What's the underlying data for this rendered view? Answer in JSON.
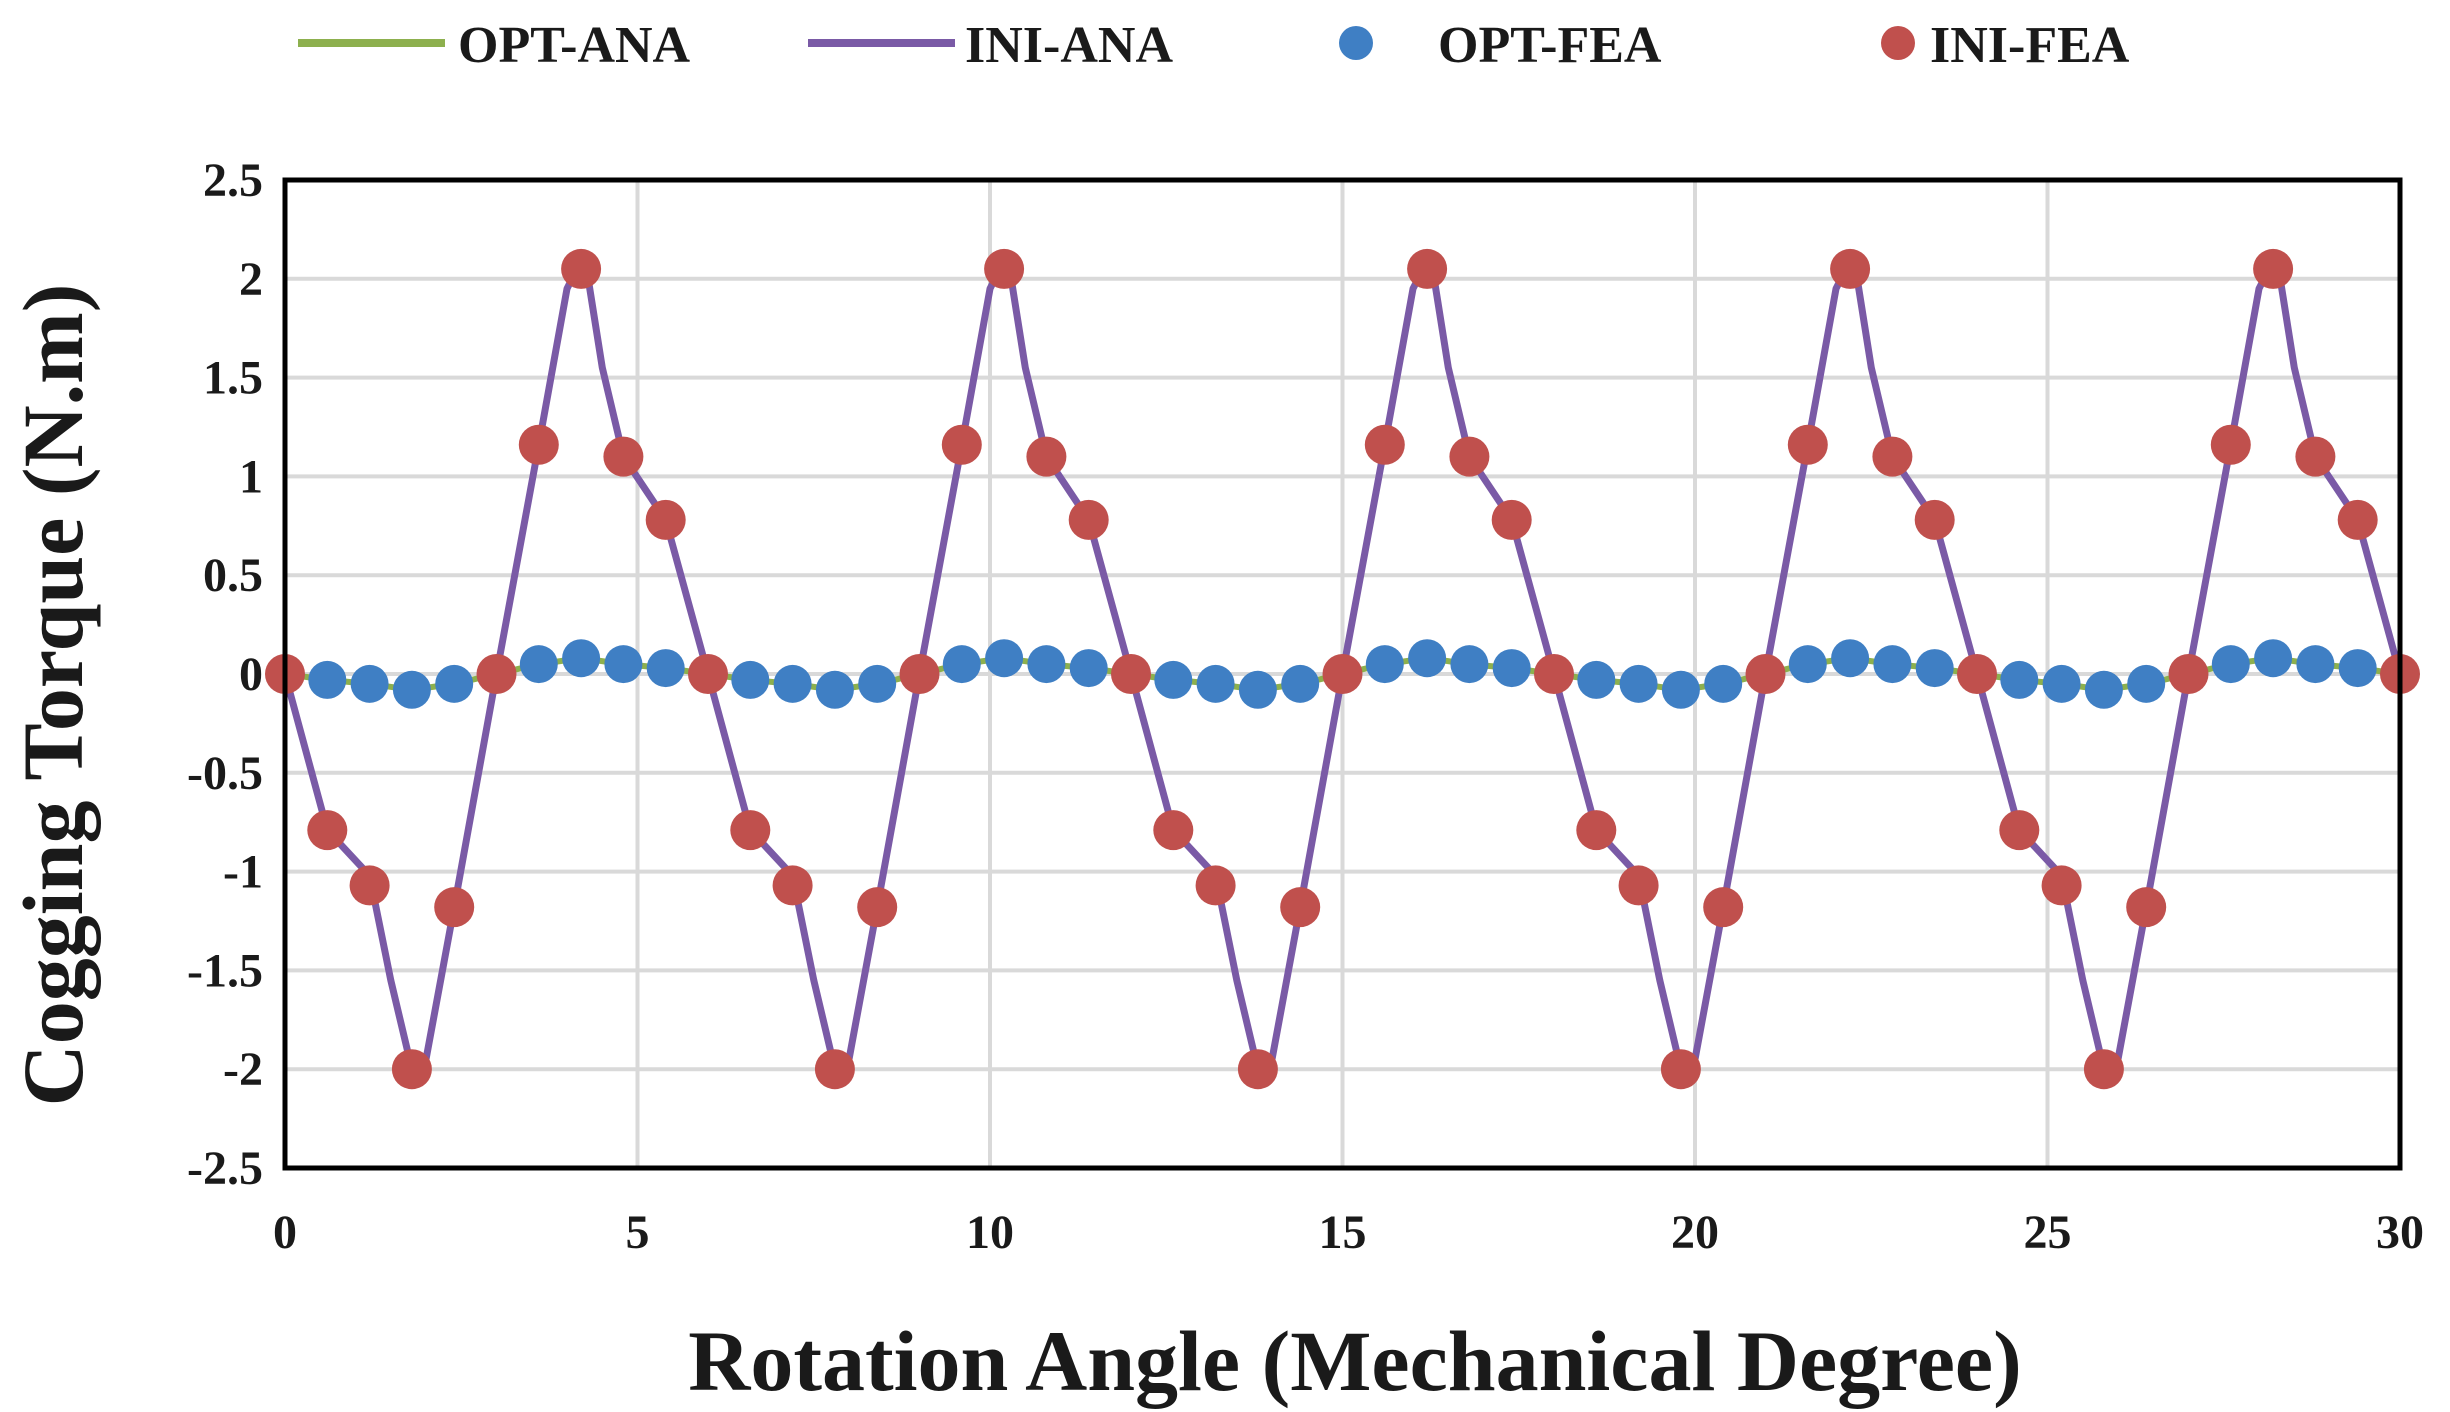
{
  "chart_data": {
    "type": "line",
    "title": "",
    "xlabel": "Rotation Angle (Mechanical Degree)",
    "ylabel": "Cogging Torque (N.m)",
    "xlim": [
      0,
      30
    ],
    "ylim": [
      -2.5,
      2.5
    ],
    "xticks": [
      0,
      5,
      10,
      15,
      20,
      25,
      30
    ],
    "xtick_labels": [
      "0",
      "5",
      "10",
      "15",
      "20",
      "25",
      "30"
    ],
    "yticks": [
      2.5,
      2,
      1.5,
      1,
      0.5,
      0,
      -0.5,
      -1,
      -1.5,
      -2,
      -2.5
    ],
    "ytick_labels": [
      "2.5",
      "2",
      "1.5",
      "1",
      "0.5",
      "0",
      "-0.5",
      "-1",
      "-1.5",
      "-2",
      "-2.5"
    ],
    "grid": true,
    "legend_position": "top",
    "colors": {
      "opt_ana": "#8db04e",
      "ini_ana": "#7a5aa6",
      "opt_fea": "#3f7fc4",
      "ini_fea": "#c0504d",
      "grid": "#d9d9d9",
      "axis": "#000000"
    },
    "period": 6,
    "opt_fea_period_values": [
      0,
      -0.03,
      -0.05,
      -0.08,
      -0.05,
      0,
      0.05,
      0.08,
      0.05,
      0.03
    ],
    "ini_fea_period_values": [
      0,
      -0.79,
      -1.07,
      -2.0,
      -1.18,
      0,
      1.16,
      2.05,
      1.1,
      0.78
    ],
    "ini_ana_period_curve": {
      "x": [
        0,
        0.6,
        1.2,
        1.5,
        1.8,
        1.9,
        2.0,
        2.4,
        3.0,
        3.6,
        4.0,
        4.1,
        4.2,
        4.3,
        4.5,
        4.8,
        5.4,
        6.0
      ],
      "y": [
        0,
        -0.79,
        -1.02,
        -1.55,
        -2.0,
        -2.02,
        -1.95,
        -1.18,
        0,
        1.16,
        1.95,
        2.02,
        2.05,
        2.0,
        1.55,
        1.1,
        0.78,
        0
      ]
    },
    "series": [
      {
        "name": "OPT-ANA",
        "style": "line",
        "color_key": "opt_ana"
      },
      {
        "name": "INI-ANA",
        "style": "line",
        "color_key": "ini_ana"
      },
      {
        "name": "OPT-FEA",
        "style": "markers",
        "color_key": "opt_fea"
      },
      {
        "name": "INI-FEA",
        "style": "markers",
        "color_key": "ini_fea"
      }
    ]
  }
}
